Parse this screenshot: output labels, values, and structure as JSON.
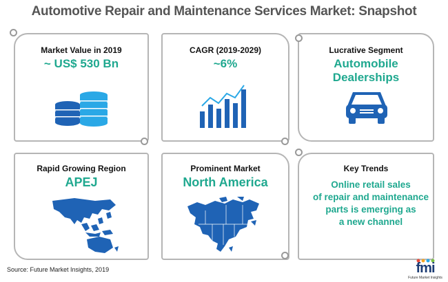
{
  "title": "Automotive Repair and Maintenance Services Market: Snapshot",
  "cards": {
    "market_value": {
      "label": "Market Value in 2019",
      "value": "~ US$ 530 Bn",
      "icon": "database-stack-icon"
    },
    "cagr": {
      "label": "CAGR (2019-2029)",
      "value": "~6%",
      "icon": "bar-growth-chart-icon"
    },
    "segment": {
      "label": "Lucrative Segment",
      "value": "Automobile Dealerships",
      "icon": "car-icon"
    },
    "region": {
      "label": "Rapid Growing Region",
      "value": "APEJ",
      "icon": "asia-pacific-map-icon"
    },
    "prominent": {
      "label": "Prominent Market",
      "value": "North America",
      "icon": "north-america-map-icon"
    },
    "trends": {
      "label": "Key Trends",
      "lines": [
        "Online retail sales",
        "of repair and maintenance",
        "parts is emerging as",
        "a new channel"
      ]
    }
  },
  "source": "Source: Future Market Insights, 2019",
  "logo": {
    "name": "fmi",
    "tagline": "Future Market Insights"
  },
  "colors": {
    "accent": "#1fa88f",
    "icon_blue": "#1f63b5",
    "border": "#b5b5b5"
  }
}
